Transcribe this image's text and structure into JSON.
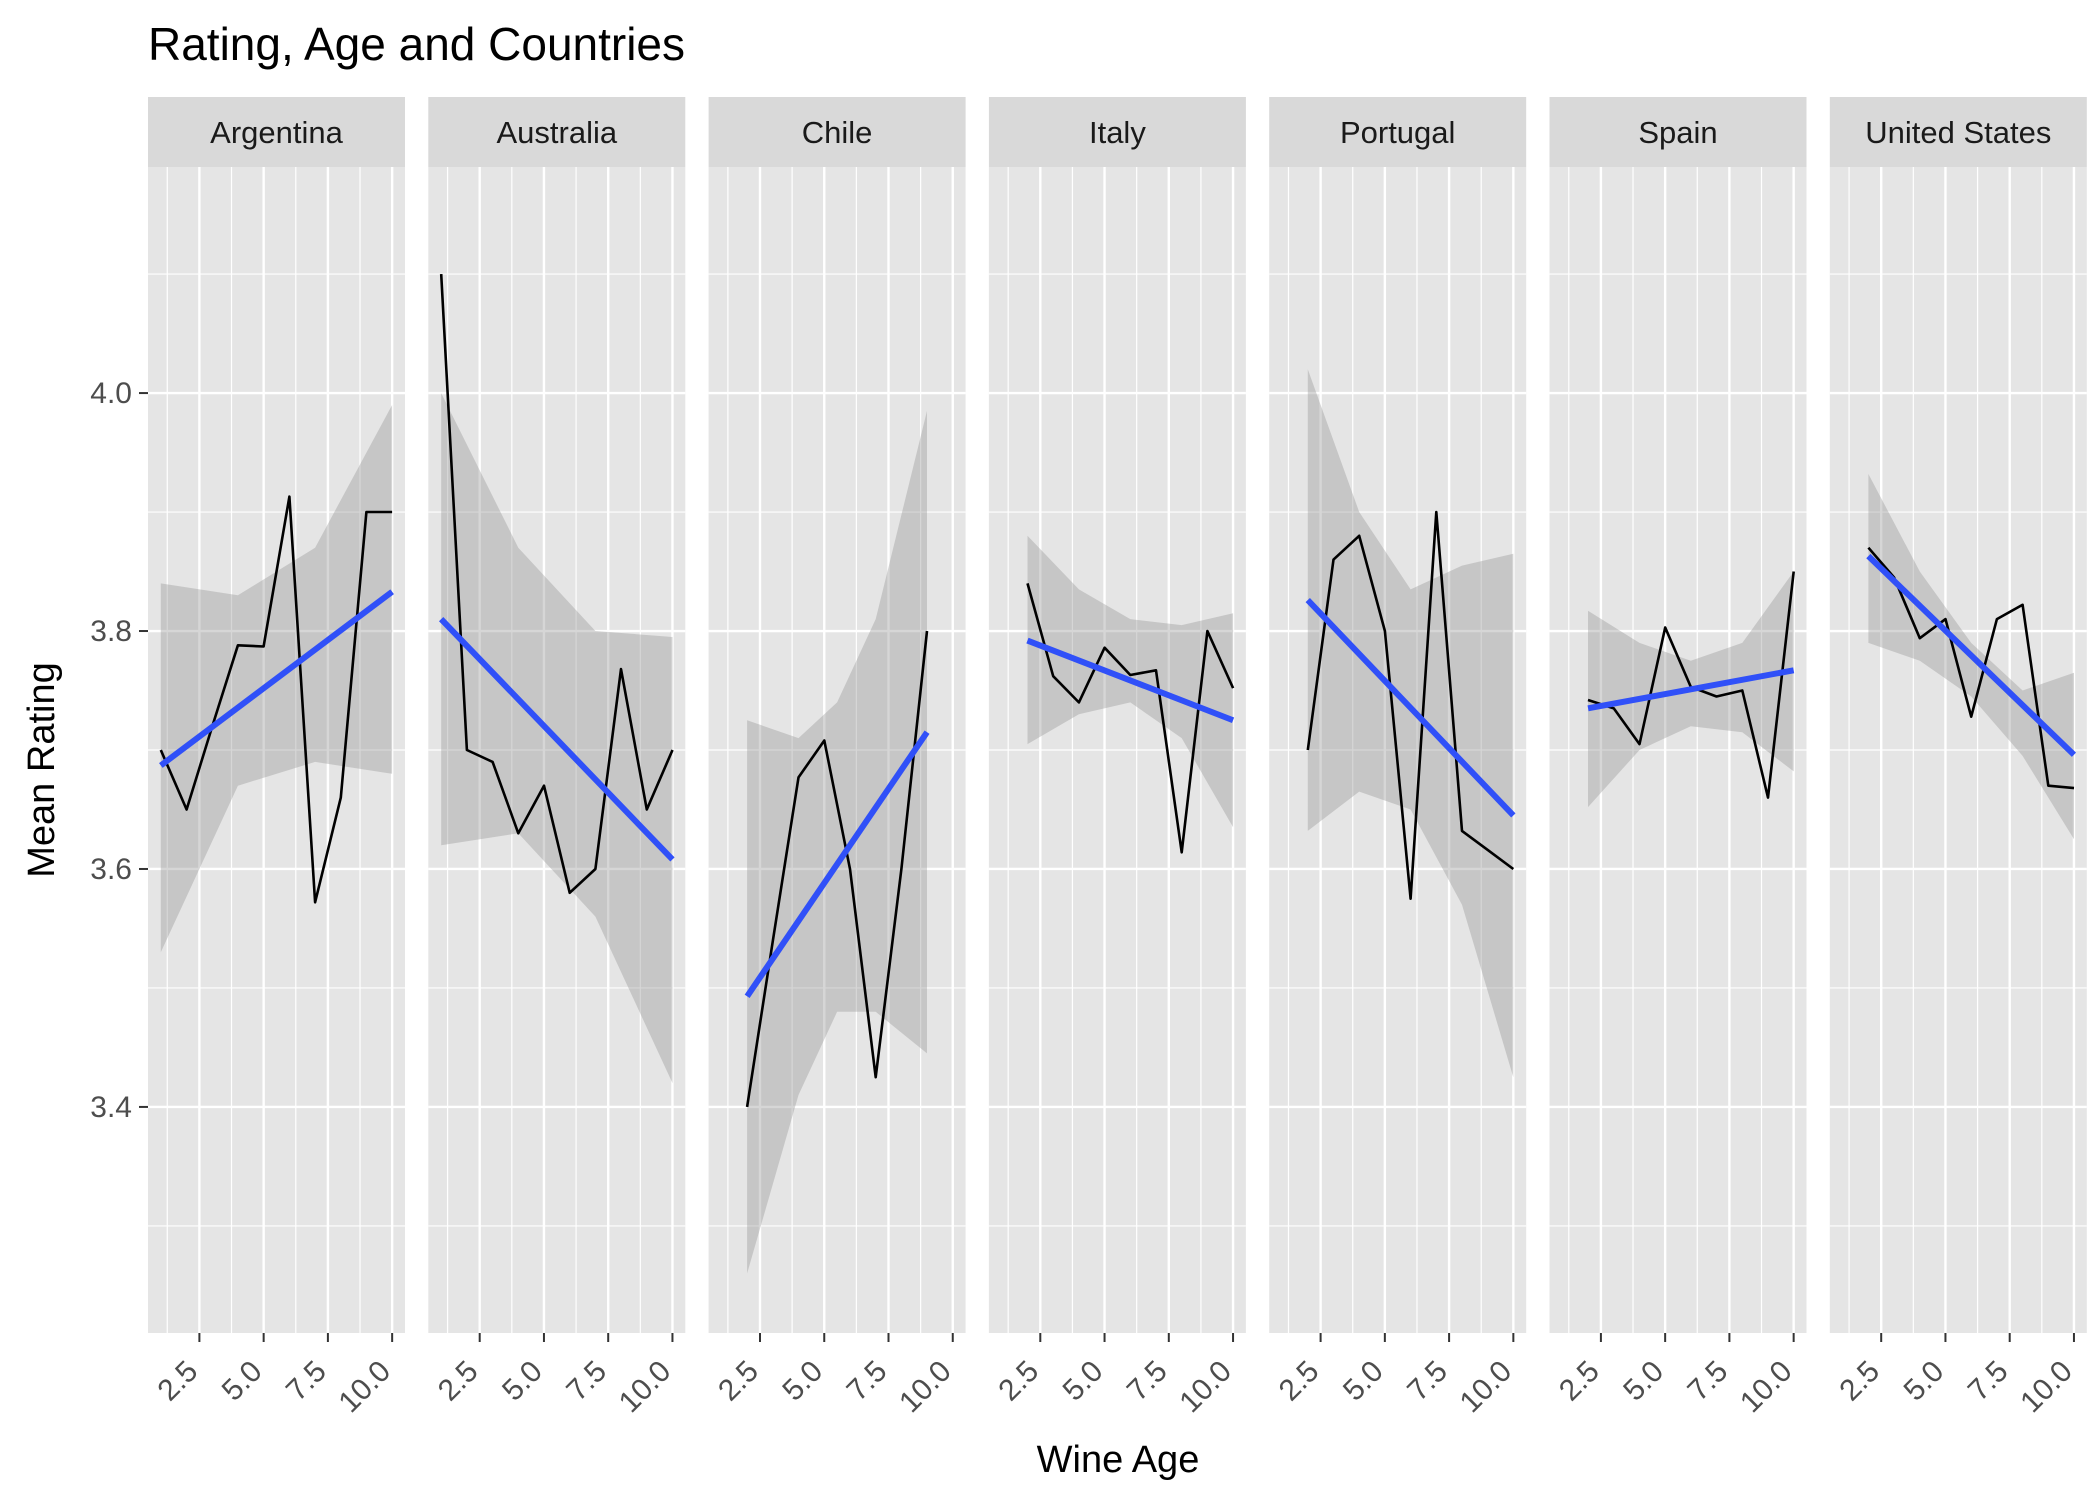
{
  "chart_data": {
    "type": "line",
    "title": "Rating, Age and Countries",
    "xlabel": "Wine Age",
    "ylabel": "Mean Rating",
    "xlim": [
      0.5,
      10.5
    ],
    "ylim": [
      3.21,
      4.19
    ],
    "x_ticks": [
      2.5,
      5.0,
      7.5,
      10.0
    ],
    "x_tick_labels": [
      "2.5",
      "5.0",
      "7.5",
      "10.0"
    ],
    "y_ticks": [
      3.4,
      3.6,
      3.8,
      4.0
    ],
    "y_tick_labels": [
      "3.4",
      "3.6",
      "3.8",
      "4.0"
    ],
    "grid": true,
    "legend": "none",
    "colors": {
      "panel_bg": "#e5e5e5",
      "strip_bg": "#d9d9d9",
      "grid": "#ffffff",
      "line": "#000000",
      "fit": "#3050f8",
      "ribbon": "#999999"
    },
    "facets": [
      {
        "name": "Argentina",
        "x": [
          1,
          2,
          3,
          4,
          5,
          6,
          7,
          8,
          9,
          10
        ],
        "y": [
          3.7,
          3.65,
          3.72,
          3.788,
          3.787,
          3.913,
          3.572,
          3.66,
          3.9,
          3.9
        ],
        "fit": {
          "x": [
            1,
            10
          ],
          "y": [
            3.687,
            3.833
          ]
        },
        "ribbon": {
          "x": [
            1,
            4,
            7,
            10
          ],
          "lower": [
            3.53,
            3.67,
            3.69,
            3.68
          ],
          "upper": [
            3.84,
            3.83,
            3.87,
            3.99
          ]
        }
      },
      {
        "name": "Australia",
        "x": [
          1,
          2,
          3,
          4,
          5,
          6,
          7,
          8,
          9,
          10
        ],
        "y": [
          4.1,
          3.7,
          3.69,
          3.63,
          3.67,
          3.58,
          3.6,
          3.768,
          3.65,
          3.7
        ],
        "fit": {
          "x": [
            1,
            10
          ],
          "y": [
            3.81,
            3.608
          ]
        },
        "ribbon": {
          "x": [
            1,
            4,
            7,
            10
          ],
          "lower": [
            3.62,
            3.63,
            3.56,
            3.42
          ],
          "upper": [
            4.0,
            3.87,
            3.8,
            3.795
          ]
        }
      },
      {
        "name": "Chile",
        "x": [
          2,
          3,
          4,
          5,
          6,
          7,
          8,
          9
        ],
        "y": [
          3.4,
          3.54,
          3.677,
          3.708,
          3.6,
          3.425,
          3.6,
          3.8
        ],
        "fit": {
          "x": [
            2,
            9
          ],
          "y": [
            3.493,
            3.715
          ]
        },
        "ribbon": {
          "x": [
            2,
            4,
            5.5,
            7,
            9
          ],
          "lower": [
            3.26,
            3.41,
            3.48,
            3.48,
            3.445
          ],
          "upper": [
            3.725,
            3.71,
            3.74,
            3.81,
            3.985
          ]
        }
      },
      {
        "name": "Italy",
        "x": [
          2,
          3,
          4,
          5,
          6,
          7,
          8,
          9,
          10
        ],
        "y": [
          3.84,
          3.762,
          3.74,
          3.786,
          3.763,
          3.767,
          3.614,
          3.8,
          3.752
        ],
        "fit": {
          "x": [
            2,
            10
          ],
          "y": [
            3.792,
            3.725
          ]
        },
        "ribbon": {
          "x": [
            2,
            4,
            6,
            8,
            10
          ],
          "lower": [
            3.705,
            3.73,
            3.74,
            3.71,
            3.635
          ],
          "upper": [
            3.88,
            3.835,
            3.81,
            3.805,
            3.815
          ]
        }
      },
      {
        "name": "Portugal",
        "x": [
          2,
          3,
          4,
          5,
          6,
          7,
          8,
          9,
          10
        ],
        "y": [
          3.7,
          3.86,
          3.88,
          3.8,
          3.575,
          3.9,
          3.632,
          3.616,
          3.6
        ],
        "fit": {
          "x": [
            2,
            10
          ],
          "y": [
            3.826,
            3.645
          ]
        },
        "ribbon": {
          "x": [
            2,
            4,
            6,
            8,
            10
          ],
          "lower": [
            3.632,
            3.665,
            3.65,
            3.57,
            3.425
          ],
          "upper": [
            4.02,
            3.9,
            3.835,
            3.855,
            3.865
          ]
        }
      },
      {
        "name": "Spain",
        "x": [
          2,
          3,
          4,
          5,
          6,
          7,
          8,
          9,
          10
        ],
        "y": [
          3.742,
          3.735,
          3.705,
          3.803,
          3.753,
          3.745,
          3.75,
          3.66,
          3.85
        ],
        "fit": {
          "x": [
            2,
            10
          ],
          "y": [
            3.735,
            3.767
          ]
        },
        "ribbon": {
          "x": [
            2,
            4,
            6,
            8,
            10
          ],
          "lower": [
            3.652,
            3.7,
            3.72,
            3.715,
            3.682
          ],
          "upper": [
            3.817,
            3.79,
            3.775,
            3.79,
            3.85
          ]
        }
      },
      {
        "name": "United States",
        "x": [
          2,
          3,
          4,
          5,
          6,
          7,
          8,
          9,
          10
        ],
        "y": [
          3.87,
          3.845,
          3.794,
          3.81,
          3.728,
          3.81,
          3.822,
          3.67,
          3.668
        ],
        "fit": {
          "x": [
            2,
            10
          ],
          "y": [
            3.863,
            3.696
          ]
        },
        "ribbon": {
          "x": [
            2,
            4,
            6,
            8,
            10
          ],
          "lower": [
            3.79,
            3.775,
            3.745,
            3.695,
            3.625
          ],
          "upper": [
            3.932,
            3.85,
            3.79,
            3.75,
            3.765
          ]
        }
      }
    ]
  }
}
